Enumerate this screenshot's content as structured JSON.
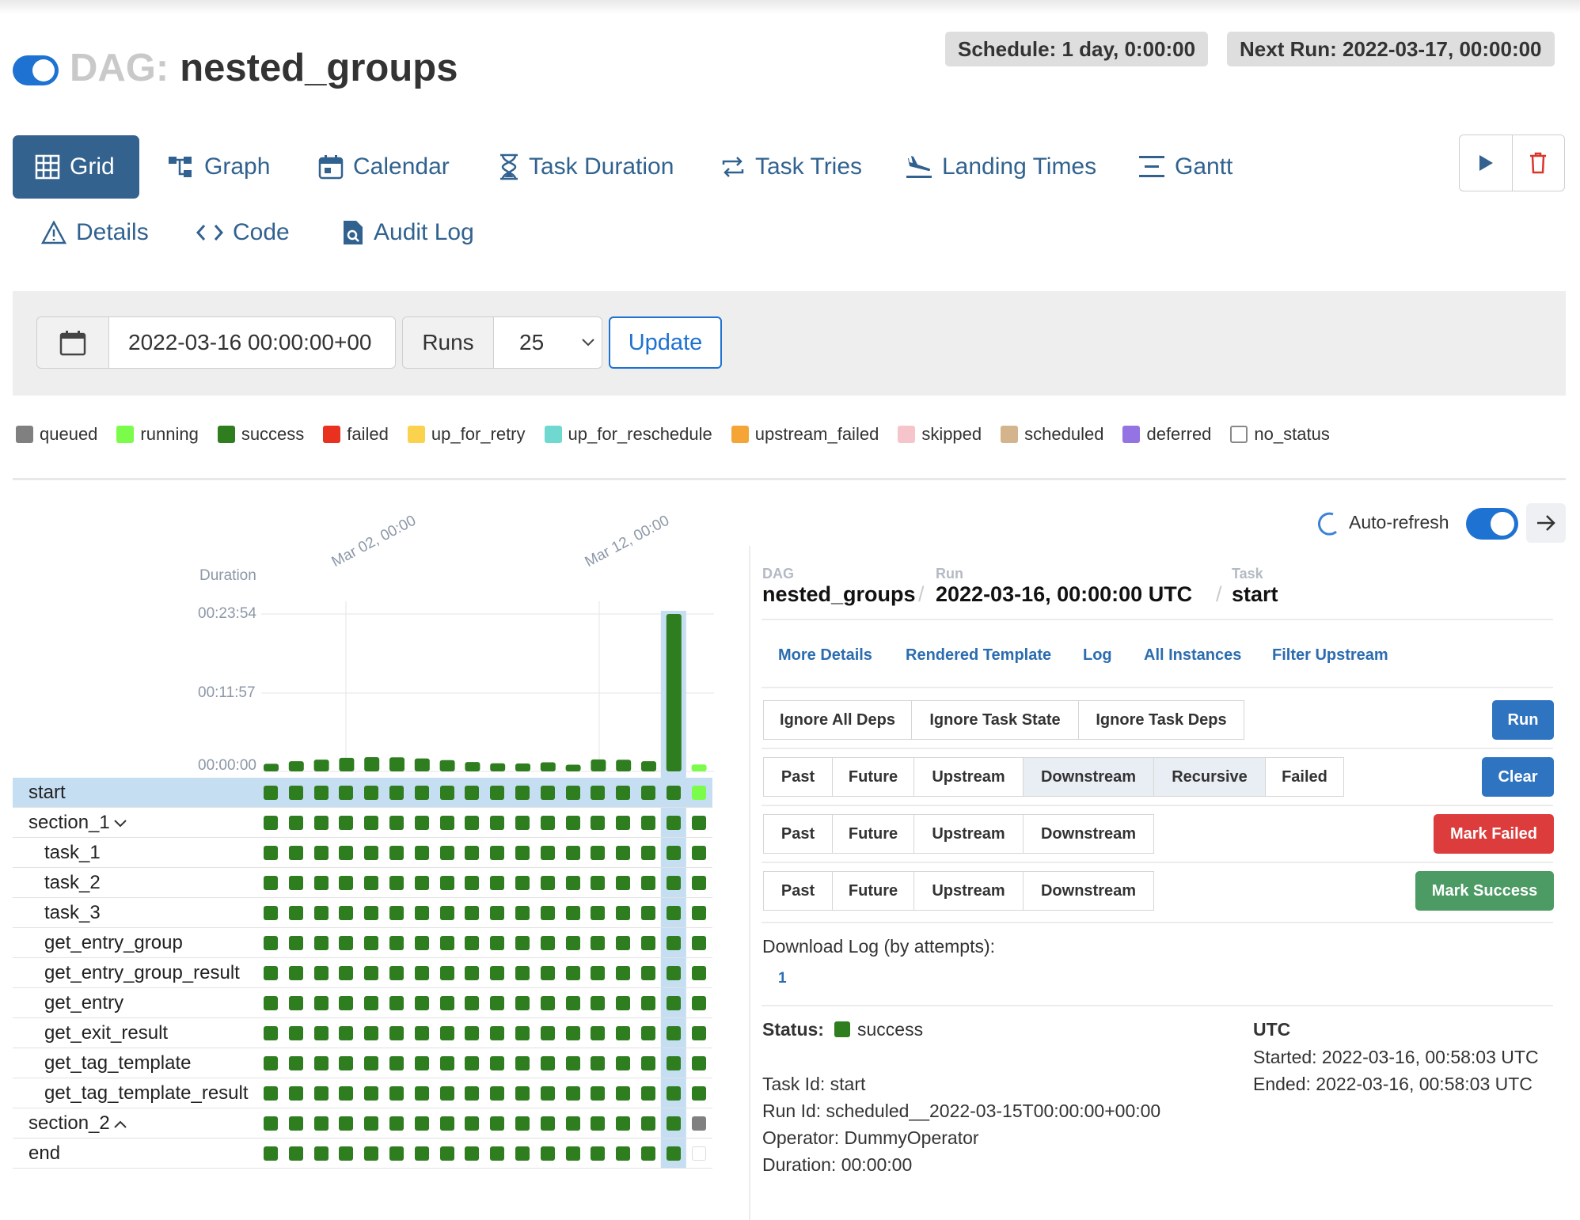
{
  "header": {
    "dag_prefix": "DAG:",
    "dag_name": "nested_groups",
    "schedule": "Schedule: 1 day, 0:00:00",
    "next_run": "Next Run: 2022-03-17, 00:00:00"
  },
  "tabs": [
    {
      "label": "Grid",
      "icon": "grid-icon"
    },
    {
      "label": "Graph",
      "icon": "graph-icon"
    },
    {
      "label": "Calendar",
      "icon": "calendar-icon"
    },
    {
      "label": "Task Duration",
      "icon": "hourglass-icon"
    },
    {
      "label": "Task Tries",
      "icon": "retry-icon"
    },
    {
      "label": "Landing Times",
      "icon": "plane-landing-icon"
    },
    {
      "label": "Gantt",
      "icon": "gantt-icon"
    },
    {
      "label": "Details",
      "icon": "warning-triangle-icon"
    },
    {
      "label": "Code",
      "icon": "code-icon"
    },
    {
      "label": "Audit Log",
      "icon": "file-search-icon"
    }
  ],
  "filters": {
    "base_date": "2022-03-16 00:00:00+00",
    "runs_label": "Runs",
    "runs_value": "25",
    "update_label": "Update"
  },
  "legend": [
    {
      "label": "queued",
      "color": "#808080"
    },
    {
      "label": "running",
      "color": "#7cfc4a"
    },
    {
      "label": "success",
      "color": "#2e7d1e"
    },
    {
      "label": "failed",
      "color": "#e8311f"
    },
    {
      "label": "up_for_retry",
      "color": "#fbd24d"
    },
    {
      "label": "up_for_reschedule",
      "color": "#6ed8d1"
    },
    {
      "label": "upstream_failed",
      "color": "#f5a436"
    },
    {
      "label": "skipped",
      "color": "#f6c5cc"
    },
    {
      "label": "scheduled",
      "color": "#d3b48c"
    },
    {
      "label": "deferred",
      "color": "#9474e2"
    },
    {
      "label": "no_status",
      "color": "#ffffff"
    }
  ],
  "auto_refresh": {
    "label": "Auto-refresh",
    "enabled": true
  },
  "grid": {
    "duration_label": "Duration",
    "y_ticks": [
      "00:23:54",
      "00:11:57",
      "00:00:00"
    ],
    "date_ticks": [
      "Mar 02, 00:00",
      "Mar 12, 00:00"
    ],
    "durations_seconds": [
      69,
      93,
      107,
      123,
      130,
      128,
      118,
      103,
      86,
      74,
      72,
      83,
      61,
      109,
      106,
      93,
      1434,
      63
    ],
    "rows": [
      {
        "label": "start",
        "indent": 0,
        "selected": true,
        "toggle": ""
      },
      {
        "label": "section_1",
        "indent": 0,
        "selected": false,
        "toggle": "chevron-down"
      },
      {
        "label": "task_1",
        "indent": 1,
        "selected": false,
        "toggle": ""
      },
      {
        "label": "task_2",
        "indent": 1,
        "selected": false,
        "toggle": ""
      },
      {
        "label": "task_3",
        "indent": 1,
        "selected": false,
        "toggle": ""
      },
      {
        "label": "get_entry_group",
        "indent": 1,
        "selected": false,
        "toggle": ""
      },
      {
        "label": "get_entry_group_result",
        "indent": 1,
        "selected": false,
        "toggle": ""
      },
      {
        "label": "get_entry",
        "indent": 1,
        "selected": false,
        "toggle": ""
      },
      {
        "label": "get_exit_result",
        "indent": 1,
        "selected": false,
        "toggle": ""
      },
      {
        "label": "get_tag_template",
        "indent": 1,
        "selected": false,
        "toggle": ""
      },
      {
        "label": "get_tag_template_result",
        "indent": 1,
        "selected": false,
        "toggle": ""
      },
      {
        "label": "section_2",
        "indent": 0,
        "selected": false,
        "toggle": "chevron-up"
      },
      {
        "label": "end",
        "indent": 0,
        "selected": false,
        "toggle": ""
      }
    ],
    "last_run_states": [
      "running",
      "success",
      "success",
      "success",
      "success",
      "success",
      "success",
      "success",
      "success",
      "success",
      "success",
      "queued",
      "no_status"
    ]
  },
  "details": {
    "crumb_labels": {
      "dag": "DAG",
      "run": "Run",
      "task": "Task"
    },
    "dag": "nested_groups",
    "run": "2022-03-16, 00:00:00 UTC",
    "task": "start",
    "links": [
      "More Details",
      "Rendered Template",
      "Log",
      "All Instances",
      "Filter Upstream"
    ],
    "run_options": [
      "Ignore All Deps",
      "Ignore Task State",
      "Ignore Task Deps"
    ],
    "run_button": "Run",
    "clear_options": [
      "Past",
      "Future",
      "Upstream",
      "Downstream",
      "Recursive",
      "Failed"
    ],
    "clear_button": "Clear",
    "failed_options": [
      "Past",
      "Future",
      "Upstream",
      "Downstream"
    ],
    "mark_failed_button": "Mark Failed",
    "success_options": [
      "Past",
      "Future",
      "Upstream",
      "Downstream"
    ],
    "mark_success_button": "Mark Success",
    "download_label": "Download Log (by attempts):",
    "attempt": "1",
    "status_label": "Status:",
    "status": "success",
    "tz": "UTC",
    "started": "Started: 2022-03-16, 00:58:03 UTC",
    "ended": "Ended: 2022-03-16, 00:58:03 UTC",
    "task_id": "Task Id: start",
    "run_id": "Run Id: scheduled__2022-03-15T00:00:00+00:00",
    "operator": "Operator: DummyOperator",
    "duration": "Duration: 00:00:00"
  },
  "colors": {
    "primary": "#34628f",
    "accent": "#1d72d2",
    "success": "#2e7d1e",
    "danger": "#dc3c3c",
    "green_btn": "#4c9a64"
  }
}
